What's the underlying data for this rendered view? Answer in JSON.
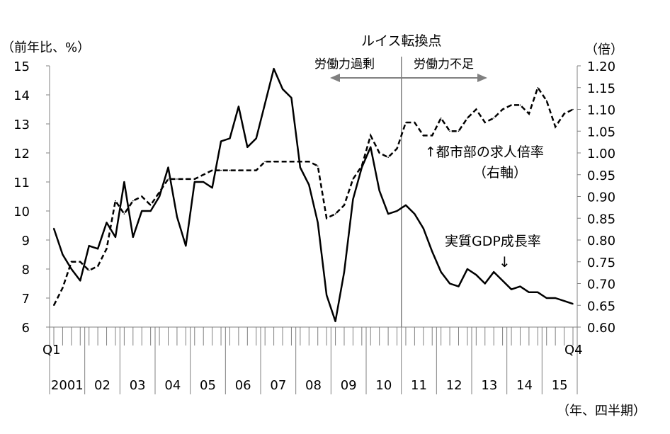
{
  "chart_data": {
    "type": "line",
    "title": "",
    "left_axis": {
      "unit_label": "（前年比、%）",
      "ylim": [
        6,
        15
      ],
      "ticks": [
        "6",
        "7",
        "8",
        "9",
        "10",
        "11",
        "12",
        "13",
        "14",
        "15"
      ]
    },
    "right_axis": {
      "unit_label": "（倍）",
      "ylim": [
        0.6,
        1.2
      ],
      "ticks": [
        "0.60",
        "0.65",
        "0.70",
        "0.75",
        "0.80",
        "0.85",
        "0.90",
        "0.95",
        "1.00",
        "1.05",
        "1.10",
        "1.15",
        "1.20"
      ]
    },
    "x_axis": {
      "unit_label": "（年、四半期）",
      "start_label": "Q1",
      "end_label": "Q4",
      "years": [
        "2001",
        "02",
        "03",
        "04",
        "05",
        "06",
        "07",
        "08",
        "09",
        "10",
        "11",
        "12",
        "13",
        "14",
        "15"
      ],
      "quarters_per_year": 4
    },
    "series": [
      {
        "name": "実質GDP成長率",
        "axis": "left",
        "style": "solid",
        "values": [
          9.4,
          8.5,
          8.0,
          7.6,
          8.8,
          8.7,
          9.6,
          9.1,
          11.0,
          9.1,
          10.0,
          10.0,
          10.5,
          11.5,
          9.8,
          8.8,
          11.0,
          11.0,
          10.8,
          12.4,
          12.5,
          13.6,
          12.2,
          12.5,
          13.7,
          14.9,
          14.2,
          13.9,
          11.5,
          10.9,
          9.6,
          7.1,
          6.2,
          7.9,
          10.4,
          11.5,
          12.2,
          10.7,
          9.9,
          10.0,
          10.2,
          9.9,
          9.4,
          8.6,
          7.9,
          7.5,
          7.4,
          8.0,
          7.8,
          7.5,
          7.9,
          7.6,
          7.3,
          7.4,
          7.2,
          7.2,
          7.0,
          7.0,
          6.9,
          6.8
        ]
      },
      {
        "name": "都市部の求人倍率",
        "axis": "right",
        "style": "dashed",
        "values": [
          0.65,
          0.69,
          0.75,
          0.75,
          0.73,
          0.74,
          0.78,
          0.89,
          0.86,
          0.89,
          0.9,
          0.88,
          0.91,
          0.94,
          0.94,
          0.94,
          0.94,
          0.95,
          0.96,
          0.96,
          0.96,
          0.96,
          0.96,
          0.96,
          0.98,
          0.98,
          0.98,
          0.98,
          0.98,
          0.98,
          0.97,
          0.85,
          0.86,
          0.88,
          0.94,
          0.97,
          1.04,
          1.0,
          0.99,
          1.01,
          1.07,
          1.07,
          1.04,
          1.04,
          1.08,
          1.05,
          1.05,
          1.08,
          1.1,
          1.07,
          1.08,
          1.1,
          1.11,
          1.11,
          1.09,
          1.15,
          1.12,
          1.06,
          1.09,
          1.1
        ]
      }
    ],
    "annotations": {
      "turning_point_title": "ルイス転換点",
      "turning_point_index": 39.5,
      "left_text": "労働力過剰",
      "right_text": "労働力不足",
      "jobs_label_line1": "↑都市部の求人倍率",
      "jobs_label_line2": "（右軸）",
      "gdp_label": "実質GDP成長率",
      "gdp_arrow": "↓"
    },
    "grid": false,
    "legend": "none"
  }
}
